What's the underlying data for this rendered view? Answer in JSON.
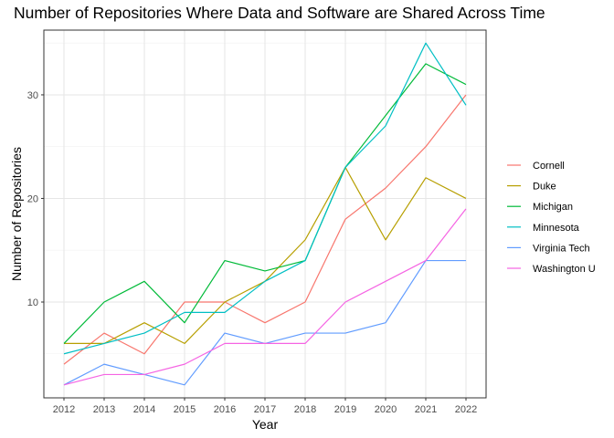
{
  "chart_data": {
    "type": "line",
    "title": "Number of Repositories Where Data and Software are Shared Across Time",
    "xlabel": "Year",
    "ylabel": "Number of Repositories",
    "x": [
      2012,
      2013,
      2014,
      2015,
      2016,
      2017,
      2018,
      2019,
      2020,
      2021,
      2022
    ],
    "xlim": [
      2011.5,
      2022.5
    ],
    "ylim": [
      0.75,
      36.25
    ],
    "yticks": [
      10,
      20,
      30
    ],
    "grid": true,
    "legend_position": "right",
    "series": [
      {
        "name": "Cornell",
        "color": "#F8766D",
        "values": [
          4,
          7,
          5,
          10,
          10,
          8,
          10,
          18,
          21,
          25,
          30
        ]
      },
      {
        "name": "Duke",
        "color": "#B79F00",
        "values": [
          6,
          6,
          8,
          6,
          10,
          12,
          16,
          23,
          16,
          22,
          20
        ]
      },
      {
        "name": "Michigan",
        "color": "#00BA38",
        "values": [
          6,
          10,
          12,
          8,
          14,
          13,
          14,
          23,
          28,
          33,
          31
        ]
      },
      {
        "name": "Minnesota",
        "color": "#00BFC4",
        "values": [
          5,
          6,
          7,
          9,
          9,
          12,
          14,
          23,
          27,
          35,
          29
        ]
      },
      {
        "name": "Virginia Tech",
        "color": "#619CFF",
        "values": [
          2,
          4,
          3,
          2,
          7,
          6,
          7,
          7,
          8,
          14,
          14
        ]
      },
      {
        "name": "Washington U",
        "color": "#F564E3",
        "values": [
          2,
          3,
          3,
          4,
          6,
          6,
          6,
          10,
          12,
          14,
          19
        ]
      }
    ]
  }
}
